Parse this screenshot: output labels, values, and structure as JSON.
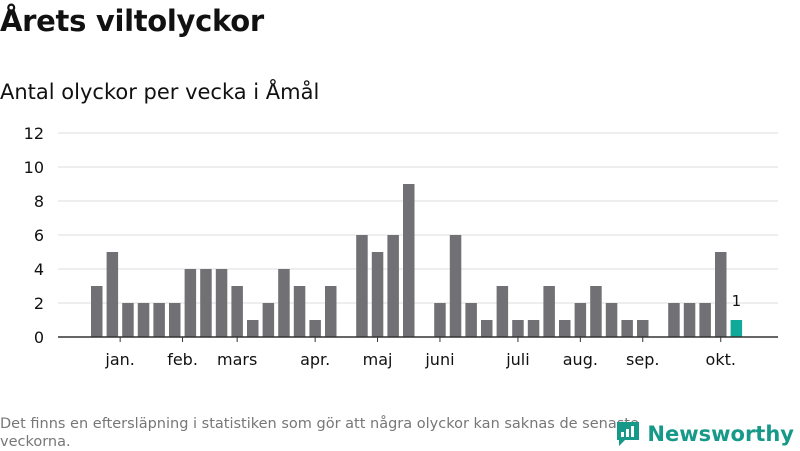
{
  "title": "Årets viltolyckor",
  "subtitle": "Antal olyckor per vecka i Åmål",
  "footnote": "Det finns en eftersläpning i statistiken som gör att några olyckor kan saknas de senaste veckorna.",
  "brand": {
    "name": "Newsworthy",
    "icon": "newsworthy-logo-icon"
  },
  "colors": {
    "bar": "#717075",
    "highlight": "#11a99a",
    "grid": "#dddddd",
    "axis": "#333333"
  },
  "chart_data": {
    "type": "bar",
    "x": [
      1,
      2,
      3,
      4,
      5,
      6,
      7,
      8,
      9,
      10,
      11,
      12,
      13,
      14,
      15,
      16,
      17,
      18,
      19,
      20,
      21,
      22,
      23,
      24,
      25,
      26,
      27,
      28,
      29,
      30,
      31,
      32,
      33,
      34,
      35,
      36,
      37,
      38,
      39,
      40,
      41,
      42
    ],
    "values": [
      3,
      5,
      2,
      2,
      2,
      2,
      4,
      4,
      4,
      3,
      1,
      2,
      4,
      3,
      1,
      3,
      0,
      6,
      5,
      6,
      9,
      0,
      2,
      6,
      2,
      1,
      3,
      1,
      1,
      3,
      1,
      2,
      3,
      2,
      1,
      1,
      0,
      2,
      2,
      2,
      5,
      1
    ],
    "highlight_index": 41,
    "data_labels": [
      {
        "index": 41,
        "text": "1"
      }
    ],
    "ylim": [
      0,
      12
    ],
    "yticks": [
      0,
      2,
      4,
      6,
      8,
      10,
      12
    ],
    "month_labels": [
      {
        "label": "jan.",
        "at": 1.5
      },
      {
        "label": "feb.",
        "at": 5.5
      },
      {
        "label": "mars",
        "at": 9.0
      },
      {
        "label": "apr.",
        "at": 14.0
      },
      {
        "label": "maj",
        "at": 18.0
      },
      {
        "label": "juni",
        "at": 22.0
      },
      {
        "label": "juli",
        "at": 27.0
      },
      {
        "label": "aug.",
        "at": 31.0
      },
      {
        "label": "sep.",
        "at": 35.0
      },
      {
        "label": "okt.",
        "at": 40.0
      }
    ],
    "grid": true,
    "legend": "none"
  }
}
